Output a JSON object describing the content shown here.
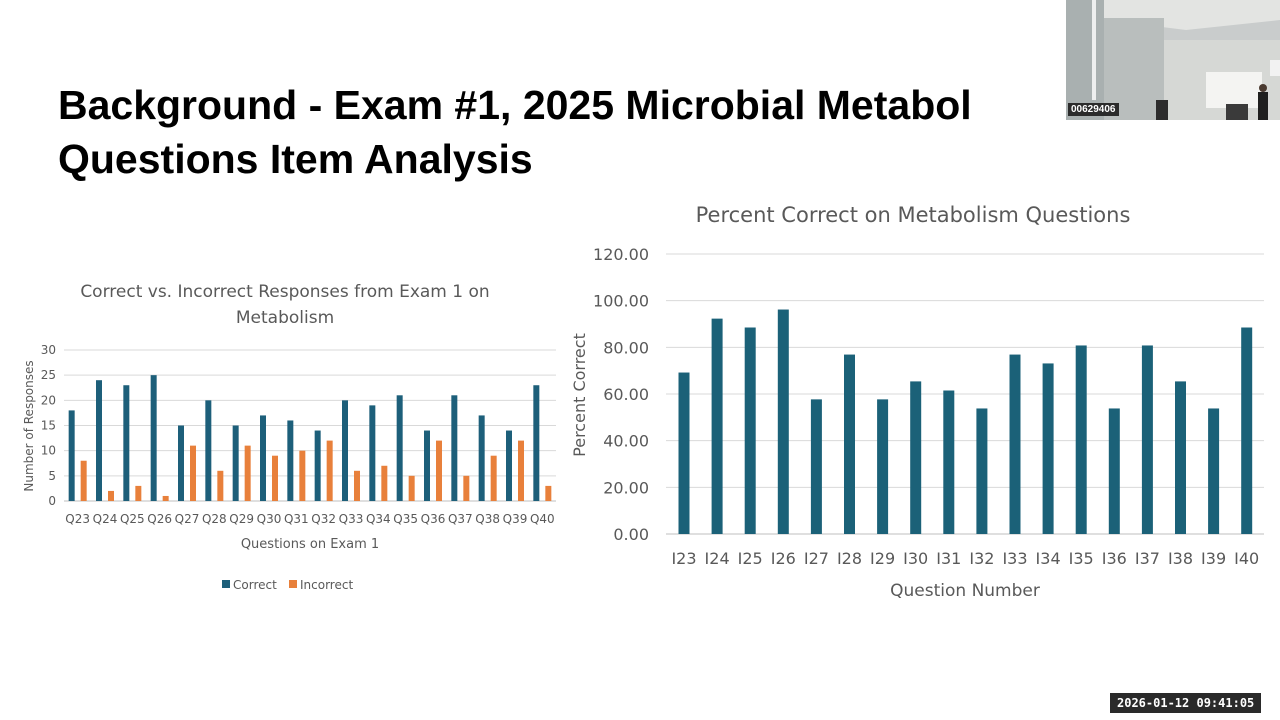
{
  "slide": {
    "title_line1": "Background - Exam #1,  2025 Microbial Metabol",
    "title_line2": "Questions Item Analysis"
  },
  "overlay": {
    "camera_id": "00629406",
    "timestamp": "2026-01-12  09:41:05"
  },
  "colors": {
    "correct": "#1d5f7a",
    "incorrect": "#e8803b",
    "percent": "#1b6178",
    "grid": "#d9d9d9",
    "axis_text": "#595959"
  },
  "chart_data": [
    {
      "type": "bar",
      "title_line1": "Correct vs. Incorrect Responses from Exam 1 on",
      "title_line2": "Metabolism",
      "xlabel": "Questions on Exam 1",
      "ylabel": "Number of Responses",
      "ylim": [
        0,
        30
      ],
      "yticks": [
        0,
        5,
        10,
        15,
        20,
        25,
        30
      ],
      "grid": true,
      "legend_position": "bottom",
      "categories": [
        "Q23",
        "Q24",
        "Q25",
        "Q26",
        "Q27",
        "Q28",
        "Q29",
        "Q30",
        "Q31",
        "Q32",
        "Q33",
        "Q34",
        "Q35",
        "Q36",
        "Q37",
        "Q38",
        "Q39",
        "Q40"
      ],
      "series": [
        {
          "name": "Correct",
          "values": [
            18,
            24,
            23,
            25,
            15,
            20,
            15,
            17,
            16,
            14,
            20,
            19,
            21,
            14,
            21,
            17,
            14,
            23
          ]
        },
        {
          "name": "Incorrect",
          "values": [
            8,
            2,
            3,
            1,
            11,
            6,
            11,
            9,
            10,
            12,
            6,
            7,
            5,
            12,
            5,
            9,
            12,
            3
          ]
        }
      ]
    },
    {
      "type": "bar",
      "title": "Percent Correct on Metabolism Questions",
      "xlabel": "Question Number",
      "ylabel": "Percent Correct",
      "ylim": [
        0,
        120
      ],
      "yticks": [
        "0.00",
        "20.00",
        "40.00",
        "60.00",
        "80.00",
        "100.00",
        "120.00"
      ],
      "grid": true,
      "categories": [
        "I23",
        "I24",
        "I25",
        "I26",
        "I27",
        "I28",
        "I29",
        "I30",
        "I31",
        "I32",
        "I33",
        "I34",
        "I35",
        "I36",
        "I37",
        "I38",
        "I39",
        "I40"
      ],
      "values": [
        69.2,
        92.3,
        88.5,
        96.2,
        57.7,
        76.9,
        57.7,
        65.4,
        61.5,
        53.8,
        76.9,
        73.1,
        80.8,
        53.8,
        80.8,
        65.4,
        53.8,
        88.5
      ]
    }
  ]
}
